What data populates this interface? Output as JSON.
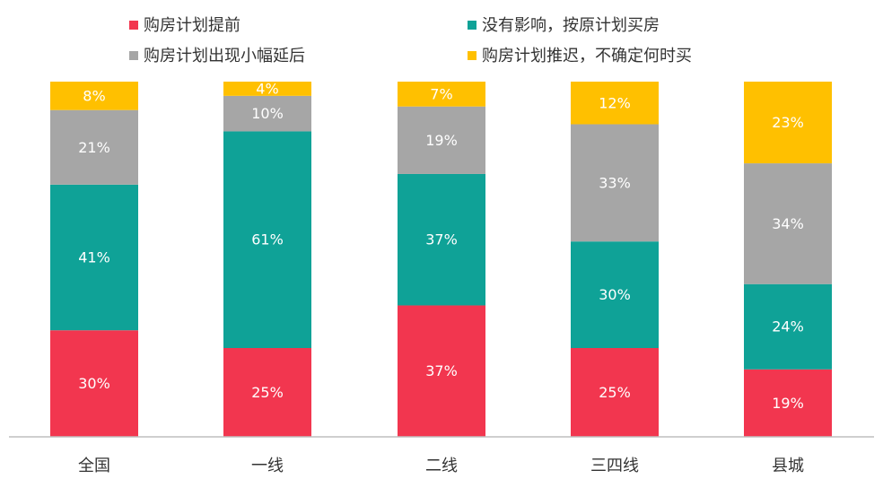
{
  "chart_data": {
    "type": "bar",
    "stacked": true,
    "categories": [
      "全国",
      "一线",
      "二线",
      "三四线",
      "县城"
    ],
    "series": [
      {
        "name": "购房计划提前",
        "color": "#f2364f",
        "values": [
          30,
          25,
          37,
          25,
          19
        ]
      },
      {
        "name": "没有影响，按原计划买房",
        "color": "#0fa297",
        "values": [
          41,
          61,
          37,
          30,
          24
        ]
      },
      {
        "name": "购房计划出现小幅延后",
        "color": "#a6a6a6",
        "values": [
          21,
          10,
          19,
          33,
          34
        ]
      },
      {
        "name": "购房计划推迟，不确定何时买",
        "color": "#ffc000",
        "values": [
          8,
          4,
          7,
          12,
          23
        ]
      }
    ],
    "value_suffix": "%",
    "ylim": [
      0,
      100
    ],
    "grid": false,
    "legend_position": "top"
  }
}
